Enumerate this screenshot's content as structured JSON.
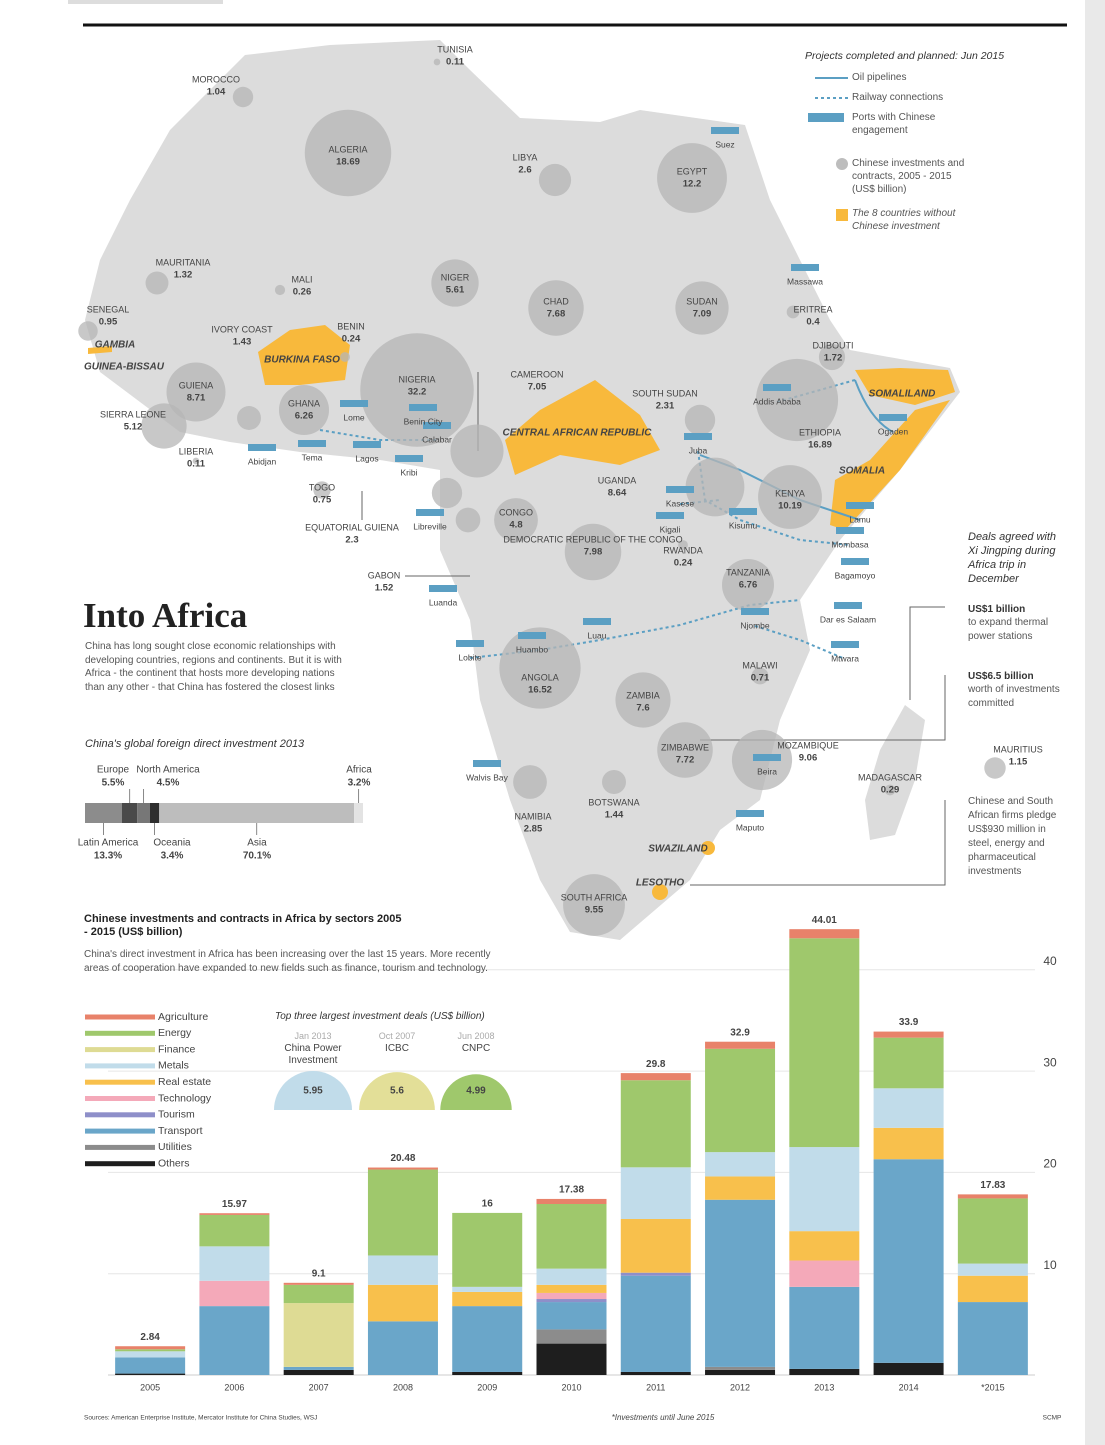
{
  "header": {
    "title": "Into Africa",
    "intro": "China has long sought close economic relationships with developing countries, regions and continents. But it is with Africa - the continent that hosts more developing nations than any other - that China has fostered the closest links"
  },
  "legend": {
    "title": "Projects completed and planned: Jun 2015",
    "items": [
      "Oil pipelines",
      "Railway connections",
      "Ports with Chinese engagement",
      "Chinese investments and contracts, 2005 - 2015 (US$ billion)",
      "The 8 countries without Chinese investment"
    ]
  },
  "map": {
    "countries": [
      {
        "name": "TUNISIA",
        "value": 0.11
      },
      {
        "name": "MOROCCO",
        "value": 1.04
      },
      {
        "name": "ALGERIA",
        "value": 18.69
      },
      {
        "name": "LIBYA",
        "value": 2.6
      },
      {
        "name": "EGYPT",
        "value": 12.2
      },
      {
        "name": "MAURITANIA",
        "value": 1.32
      },
      {
        "name": "MALI",
        "value": 0.26
      },
      {
        "name": "SENEGAL",
        "value": 0.95
      },
      {
        "name": "NIGER",
        "value": 5.61
      },
      {
        "name": "CHAD",
        "value": 7.68
      },
      {
        "name": "SUDAN",
        "value": 7.09
      },
      {
        "name": "ERITREA",
        "value": 0.4
      },
      {
        "name": "DJIBOUTI",
        "value": 1.72
      },
      {
        "name": "IVORY COAST",
        "value": 1.43
      },
      {
        "name": "BENIN",
        "value": 0.24
      },
      {
        "name": "NIGERIA",
        "value": 32.2
      },
      {
        "name": "CAMEROON",
        "value": 7.05
      },
      {
        "name": "GUIENA",
        "value": 8.71
      },
      {
        "name": "SIERRA LEONE",
        "value": 5.12
      },
      {
        "name": "GHANA",
        "value": 6.26
      },
      {
        "name": "LIBERIA",
        "value": 0.11
      },
      {
        "name": "TOGO",
        "value": 0.75
      },
      {
        "name": "ETHIOPIA",
        "value": 16.89
      },
      {
        "name": "SOUTH SUDAN",
        "value": 2.31
      },
      {
        "name": "UGANDA",
        "value": 8.64
      },
      {
        "name": "KENYA",
        "value": 10.19
      },
      {
        "name": "CONGO",
        "value": 4.8
      },
      {
        "name": "EQUATORIAL GUIENA",
        "value": 2.3
      },
      {
        "name": "GABON",
        "value": 1.52
      },
      {
        "name": "DEMOCRATIC REPUBLIC OF THE CONGO",
        "value": 7.98
      },
      {
        "name": "RWANDA",
        "value": 0.24
      },
      {
        "name": "TANZANIA",
        "value": 6.76
      },
      {
        "name": "MALAWI",
        "value": 0.71
      },
      {
        "name": "ANGOLA",
        "value": 16.52
      },
      {
        "name": "ZAMBIA",
        "value": 7.6
      },
      {
        "name": "ZIMBABWE",
        "value": 7.72
      },
      {
        "name": "MOZAMBIQUE",
        "value": 9.06
      },
      {
        "name": "MADAGASCAR",
        "value": 0.29
      },
      {
        "name": "MAURITIUS",
        "value": 1.15
      },
      {
        "name": "BOTSWANA",
        "value": 1.44
      },
      {
        "name": "NAMIBIA",
        "value": 2.85
      },
      {
        "name": "SOUTH AFRICA",
        "value": 9.55
      }
    ],
    "no_investment": [
      "GAMBIA",
      "GUINEA-BISSAU",
      "BURKINA FASO",
      "CENTRAL AFRICAN REPUBLIC",
      "SOMALILAND",
      "SOMALIA",
      "SWAZILAND",
      "LESOTHO"
    ],
    "places": [
      "Suez",
      "Massawa",
      "Addis Ababa",
      "Ogaden",
      "Juba",
      "Kasese",
      "Kisumu",
      "Kigali",
      "Lamu",
      "Mombasa",
      "Bagamoyo",
      "Dar es Salaam",
      "Njombe",
      "Mtwara",
      "Beira",
      "Maputo",
      "Walvis Bay",
      "Lobite",
      "Huambo",
      "Luau",
      "Luanda",
      "Libreville",
      "Kribi",
      "Calabar",
      "Benin City",
      "Lome",
      "Tema",
      "Lagos",
      "Abidjan"
    ]
  },
  "deals_xi": {
    "title": "Deals agreed with Xi Jingping during Africa trip in December",
    "items": [
      {
        "amount": "US$1 billion",
        "text": "to expand thermal power stations"
      },
      {
        "amount": "US$6.5 billion",
        "text": "worth of investments committed"
      },
      {
        "text": "Chinese and South African firms pledge US$930 million in steel, energy and pharmaceutical investments"
      }
    ]
  },
  "chart_data": [
    {
      "type": "stacked_hbar",
      "title": "China's global foreign direct investment 2013",
      "xlim": [
        0,
        100
      ],
      "series": [
        {
          "name": "Latin America",
          "color": "#8c8c8c",
          "values": [
            13.3
          ],
          "value_labels": [
            "13.3%"
          ]
        },
        {
          "name": "Europe",
          "color": "#4a4a4a",
          "values": [
            5.5
          ],
          "value_labels": [
            "5.5%"
          ]
        },
        {
          "name": "North America",
          "color": "#777777",
          "values": [
            4.5
          ],
          "value_labels": [
            "4.5%"
          ]
        },
        {
          "name": "Oceania",
          "color": "#2e2e2e",
          "values": [
            3.4
          ],
          "value_labels": [
            "3.4%"
          ]
        },
        {
          "name": "Asia",
          "color": "#bdbdbd",
          "values": [
            70.1
          ],
          "value_labels": [
            "70.1%"
          ]
        },
        {
          "name": "Africa",
          "color": "#e3e3e3",
          "values": [
            3.2
          ],
          "value_labels": [
            "3.2%"
          ]
        }
      ]
    },
    {
      "type": "stacked_bar",
      "title": "Chinese investments and contracts in Africa by sectors 2005 - 2015 (US$ billion)",
      "subtitle": "China's direct investment in Africa has been increasing over the last 15 years. More recently areas of cooperation have expanded to new fields such as finance, tourism and technology.",
      "categories": [
        "2005",
        "2006",
        "2007",
        "2008",
        "2009",
        "2010",
        "2011",
        "2012",
        "2013",
        "2014",
        "*2015"
      ],
      "series": [
        {
          "name": "Agriculture",
          "color": "#e8826a",
          "values": [
            0.3,
            0.17,
            0.2,
            0.2,
            0,
            0.5,
            0.7,
            0.7,
            0.9,
            0.6,
            0.4
          ]
        },
        {
          "name": "Energy",
          "color": "#9fc86c",
          "values": [
            0.2,
            3.1,
            1.8,
            8.48,
            7.3,
            6.38,
            8.6,
            10.2,
            20.61,
            5.0,
            6.43
          ]
        },
        {
          "name": "Finance",
          "color": "#dedb94",
          "values": [
            0,
            0,
            6.3,
            0,
            0,
            0,
            0,
            0,
            0,
            0,
            0
          ]
        },
        {
          "name": "Metals",
          "color": "#c1dcea",
          "values": [
            0.6,
            3.4,
            0,
            2.9,
            0.5,
            1.6,
            5.1,
            2.4,
            8.3,
            3.9,
            1.2
          ]
        },
        {
          "name": "Real estate",
          "color": "#f8c04c",
          "values": [
            0,
            0,
            0,
            3.6,
            1.4,
            0.8,
            5.3,
            2.3,
            2.9,
            3.1,
            2.6
          ]
        },
        {
          "name": "Technology",
          "color": "#f4a9b9",
          "values": [
            0,
            2.5,
            0,
            0,
            0,
            0.6,
            0,
            0,
            2.6,
            0,
            0
          ]
        },
        {
          "name": "Tourism",
          "color": "#8e8fc9",
          "values": [
            0,
            0,
            0,
            0,
            0,
            0.3,
            0.3,
            0,
            0,
            0,
            0
          ]
        },
        {
          "name": "Transport",
          "color": "#6aa6c9",
          "values": [
            1.6,
            6.8,
            0.3,
            5.3,
            6.5,
            2.7,
            9.5,
            16.5,
            8.1,
            20.1,
            7.2
          ]
        },
        {
          "name": "Utilities",
          "color": "#8c8c8c",
          "values": [
            0,
            0,
            0,
            0,
            0,
            1.4,
            0,
            0.3,
            0,
            0,
            0
          ]
        },
        {
          "name": "Others",
          "color": "#1e1e1e",
          "values": [
            0.14,
            0,
            0.5,
            0,
            0.3,
            3.1,
            0.3,
            0.5,
            0.6,
            1.2,
            0
          ]
        }
      ],
      "total_labels": [
        "2.84",
        "15.97",
        "9.1",
        "20.48",
        "16",
        "17.38",
        "29.8",
        "32.9",
        "44.01",
        "33.9",
        "17.83"
      ],
      "ylim": [
        0,
        46
      ],
      "yticks": [
        10,
        20,
        30,
        40
      ],
      "grid": true
    }
  ],
  "top_deals": {
    "title": "Top three largest investment deals (US$ billion)",
    "items": [
      {
        "date": "Jan 2013",
        "name": "China Power Investment",
        "value": 5.95,
        "color": "#c1dcea"
      },
      {
        "date": "Oct 2007",
        "name": "ICBC",
        "value": 5.6,
        "color": "#e3df98"
      },
      {
        "date": "Jun 2008",
        "name": "CNPC",
        "value": 4.99,
        "color": "#9fc86c"
      }
    ]
  },
  "footer": {
    "sources": "Sources: American Enterprise Institute, Mercator Institute for China Studies, WSJ",
    "note": "*Investments until June 2015",
    "credit": "SCMP"
  }
}
